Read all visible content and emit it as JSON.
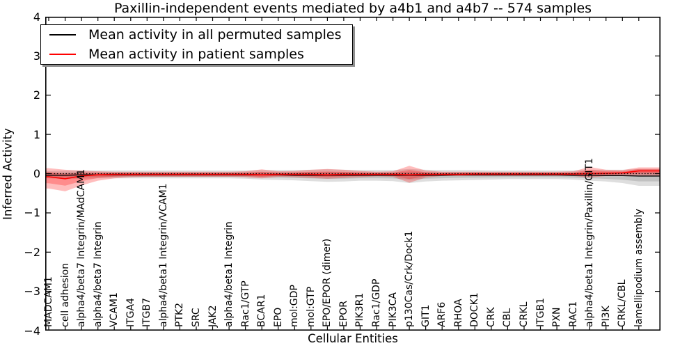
{
  "title": "Paxillin-independent events mediated by a4b1 and a4b7 -- 574 samples",
  "axes": {
    "ylabel": "Inferred Activity",
    "xlabel": "Cellular Entities",
    "ytick_labels": [
      "4",
      "3",
      "2",
      "1",
      "0",
      "−1",
      "−2",
      "−3",
      "−4"
    ]
  },
  "legend": {
    "items": [
      {
        "label": "Mean activity in all permuted samples",
        "color": "#000000"
      },
      {
        "label": "Mean activity in patient samples",
        "color": "#ff0000"
      }
    ]
  },
  "chart_data": {
    "type": "line",
    "title": "Paxillin-independent events mediated by a4b1 and a4b7 -- 574 samples",
    "xlabel": "Cellular Entities",
    "ylabel": "Inferred Activity",
    "ylim": [
      -4,
      4
    ],
    "yticks": [
      4,
      3,
      2,
      1,
      0,
      -1,
      -2,
      -3,
      -4
    ],
    "grid": false,
    "legend_position": "upper left",
    "zero_line": {
      "style": "dotted",
      "color": "#000000",
      "value": 0
    },
    "categories": [
      "MADCAM1",
      "cell adhesion",
      "alpha4/beta7 Integrin/MAdCAM1",
      "alpha4/beta7 Integrin",
      "VCAM1",
      "ITGA4",
      "ITGB7",
      "alpha4/beta1 Integrin/VCAM1",
      "PTK2",
      "SRC",
      "JAK2",
      "alpha4/beta1 Integrin",
      "Rac1/GTP",
      "BCAR1",
      "EPO",
      "mol:GDP",
      "mol:GTP",
      "EPO/EPOR (dimer)",
      "EPOR",
      "PIK3R1",
      "Rac1/GDP",
      "PIK3CA",
      "p130Cas/Crk/Dock1",
      "GIT1",
      "ARF6",
      "RHOA",
      "DOCK1",
      "CRK",
      "CBL",
      "CRKL",
      "ITGB1",
      "PXN",
      "RAC1",
      "alpha4/beta1 Integrin/Paxillin/GIT1",
      "PI3K",
      "CRKL/CBL",
      "lamellipodium assembly"
    ],
    "series": [
      {
        "name": "Mean activity in all permuted samples",
        "color": "#000000",
        "band_color": "rgba(0,0,0,0.13)",
        "values": [
          -0.04,
          -0.04,
          -0.03,
          -0.03,
          -0.03,
          -0.03,
          -0.03,
          -0.03,
          -0.03,
          -0.03,
          -0.03,
          -0.03,
          -0.03,
          -0.03,
          -0.03,
          -0.04,
          -0.04,
          -0.04,
          -0.04,
          -0.04,
          -0.04,
          -0.04,
          -0.04,
          -0.04,
          -0.04,
          -0.03,
          -0.03,
          -0.03,
          -0.03,
          -0.03,
          -0.03,
          -0.03,
          -0.04,
          -0.04,
          -0.05,
          -0.05,
          -0.06
        ],
        "band_upper": [
          0.07,
          0.08,
          0.08,
          0.08,
          0.08,
          0.08,
          0.08,
          0.08,
          0.08,
          0.08,
          0.08,
          0.08,
          0.08,
          0.09,
          0.09,
          0.09,
          0.1,
          0.11,
          0.1,
          0.09,
          0.09,
          0.09,
          0.12,
          0.1,
          0.09,
          0.09,
          0.09,
          0.08,
          0.08,
          0.08,
          0.08,
          0.08,
          0.08,
          0.1,
          0.1,
          0.1,
          0.12
        ],
        "band_lower": [
          -0.12,
          -0.14,
          -0.13,
          -0.12,
          -0.12,
          -0.12,
          -0.12,
          -0.12,
          -0.12,
          -0.12,
          -0.12,
          -0.12,
          -0.13,
          -0.15,
          -0.16,
          -0.17,
          -0.19,
          -0.21,
          -0.2,
          -0.18,
          -0.18,
          -0.19,
          -0.24,
          -0.2,
          -0.18,
          -0.17,
          -0.16,
          -0.15,
          -0.14,
          -0.14,
          -0.14,
          -0.14,
          -0.15,
          -0.18,
          -0.2,
          -0.24,
          -0.31
        ]
      },
      {
        "name": "Mean activity in patient samples",
        "color": "#ff0000",
        "band_color": "rgba(255,0,0,0.26)",
        "values": [
          -0.08,
          -0.13,
          -0.06,
          -0.03,
          -0.02,
          -0.02,
          -0.02,
          -0.02,
          -0.02,
          -0.02,
          -0.02,
          -0.02,
          -0.02,
          -0.03,
          -0.02,
          -0.02,
          -0.02,
          -0.03,
          -0.02,
          -0.02,
          -0.02,
          -0.02,
          -0.03,
          -0.02,
          -0.02,
          -0.02,
          -0.01,
          -0.01,
          -0.01,
          -0.01,
          -0.01,
          -0.01,
          -0.01,
          0.0,
          0.01,
          0.02,
          0.07
        ],
        "band_upper": [
          0.14,
          0.1,
          0.08,
          0.06,
          0.05,
          0.05,
          0.05,
          0.05,
          0.05,
          0.05,
          0.05,
          0.05,
          0.06,
          0.11,
          0.06,
          0.07,
          0.1,
          0.12,
          0.1,
          0.07,
          0.05,
          0.06,
          0.2,
          0.08,
          0.05,
          0.05,
          0.05,
          0.05,
          0.05,
          0.05,
          0.05,
          0.05,
          0.06,
          0.17,
          0.1,
          0.09,
          0.16
        ],
        "band_lower": [
          -0.38,
          -0.45,
          -0.3,
          -0.18,
          -0.12,
          -0.09,
          -0.08,
          -0.08,
          -0.08,
          -0.08,
          -0.08,
          -0.08,
          -0.09,
          -0.12,
          -0.08,
          -0.09,
          -0.11,
          -0.13,
          -0.11,
          -0.09,
          -0.07,
          -0.08,
          -0.23,
          -0.1,
          -0.06,
          -0.06,
          -0.06,
          -0.06,
          -0.06,
          -0.06,
          -0.06,
          -0.06,
          -0.06,
          -0.1,
          -0.06,
          -0.04,
          -0.05
        ]
      }
    ]
  }
}
